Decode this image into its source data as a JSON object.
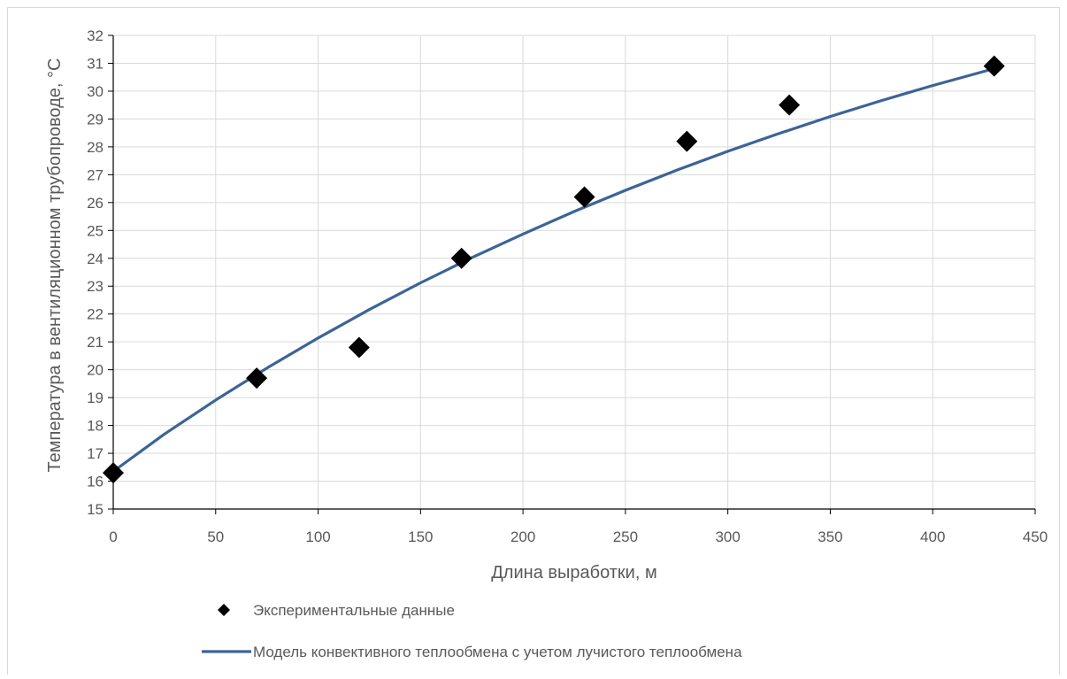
{
  "chart_data": {
    "type": "scatter",
    "title": "",
    "xlabel": "Длина выработки, м",
    "ylabel": "Температура в вентиляционном трубопроводе, °C",
    "xlim": [
      0,
      450
    ],
    "ylim": [
      15,
      32
    ],
    "x_ticks": [
      0,
      50,
      100,
      150,
      200,
      250,
      300,
      350,
      400,
      450
    ],
    "y_ticks": [
      15,
      16,
      17,
      18,
      19,
      20,
      21,
      22,
      23,
      24,
      25,
      26,
      27,
      28,
      29,
      30,
      31,
      32
    ],
    "grid": true,
    "legend_position": "bottom",
    "series": [
      {
        "name": "Экспериментальные данные",
        "kind": "scatter",
        "marker": "diamond",
        "color": "#000000",
        "x": [
          0,
          70,
          120,
          170,
          230,
          280,
          330,
          430
        ],
        "y": [
          16.3,
          19.7,
          20.8,
          24.0,
          26.2,
          28.2,
          29.5,
          30.9
        ]
      },
      {
        "name": "Модель конвективного теплообмена с учетом лучистого теплообмена",
        "kind": "line",
        "color": "#3c6496",
        "x": [
          0,
          25,
          50,
          75,
          100,
          125,
          150,
          175,
          200,
          225,
          250,
          275,
          300,
          325,
          350,
          375,
          400,
          430
        ],
        "y": [
          16.35,
          17.69,
          18.91,
          20.06,
          21.14,
          22.16,
          23.12,
          24.02,
          24.87,
          25.68,
          26.44,
          27.16,
          27.84,
          28.48,
          29.09,
          29.66,
          30.2,
          30.81
        ]
      }
    ]
  }
}
